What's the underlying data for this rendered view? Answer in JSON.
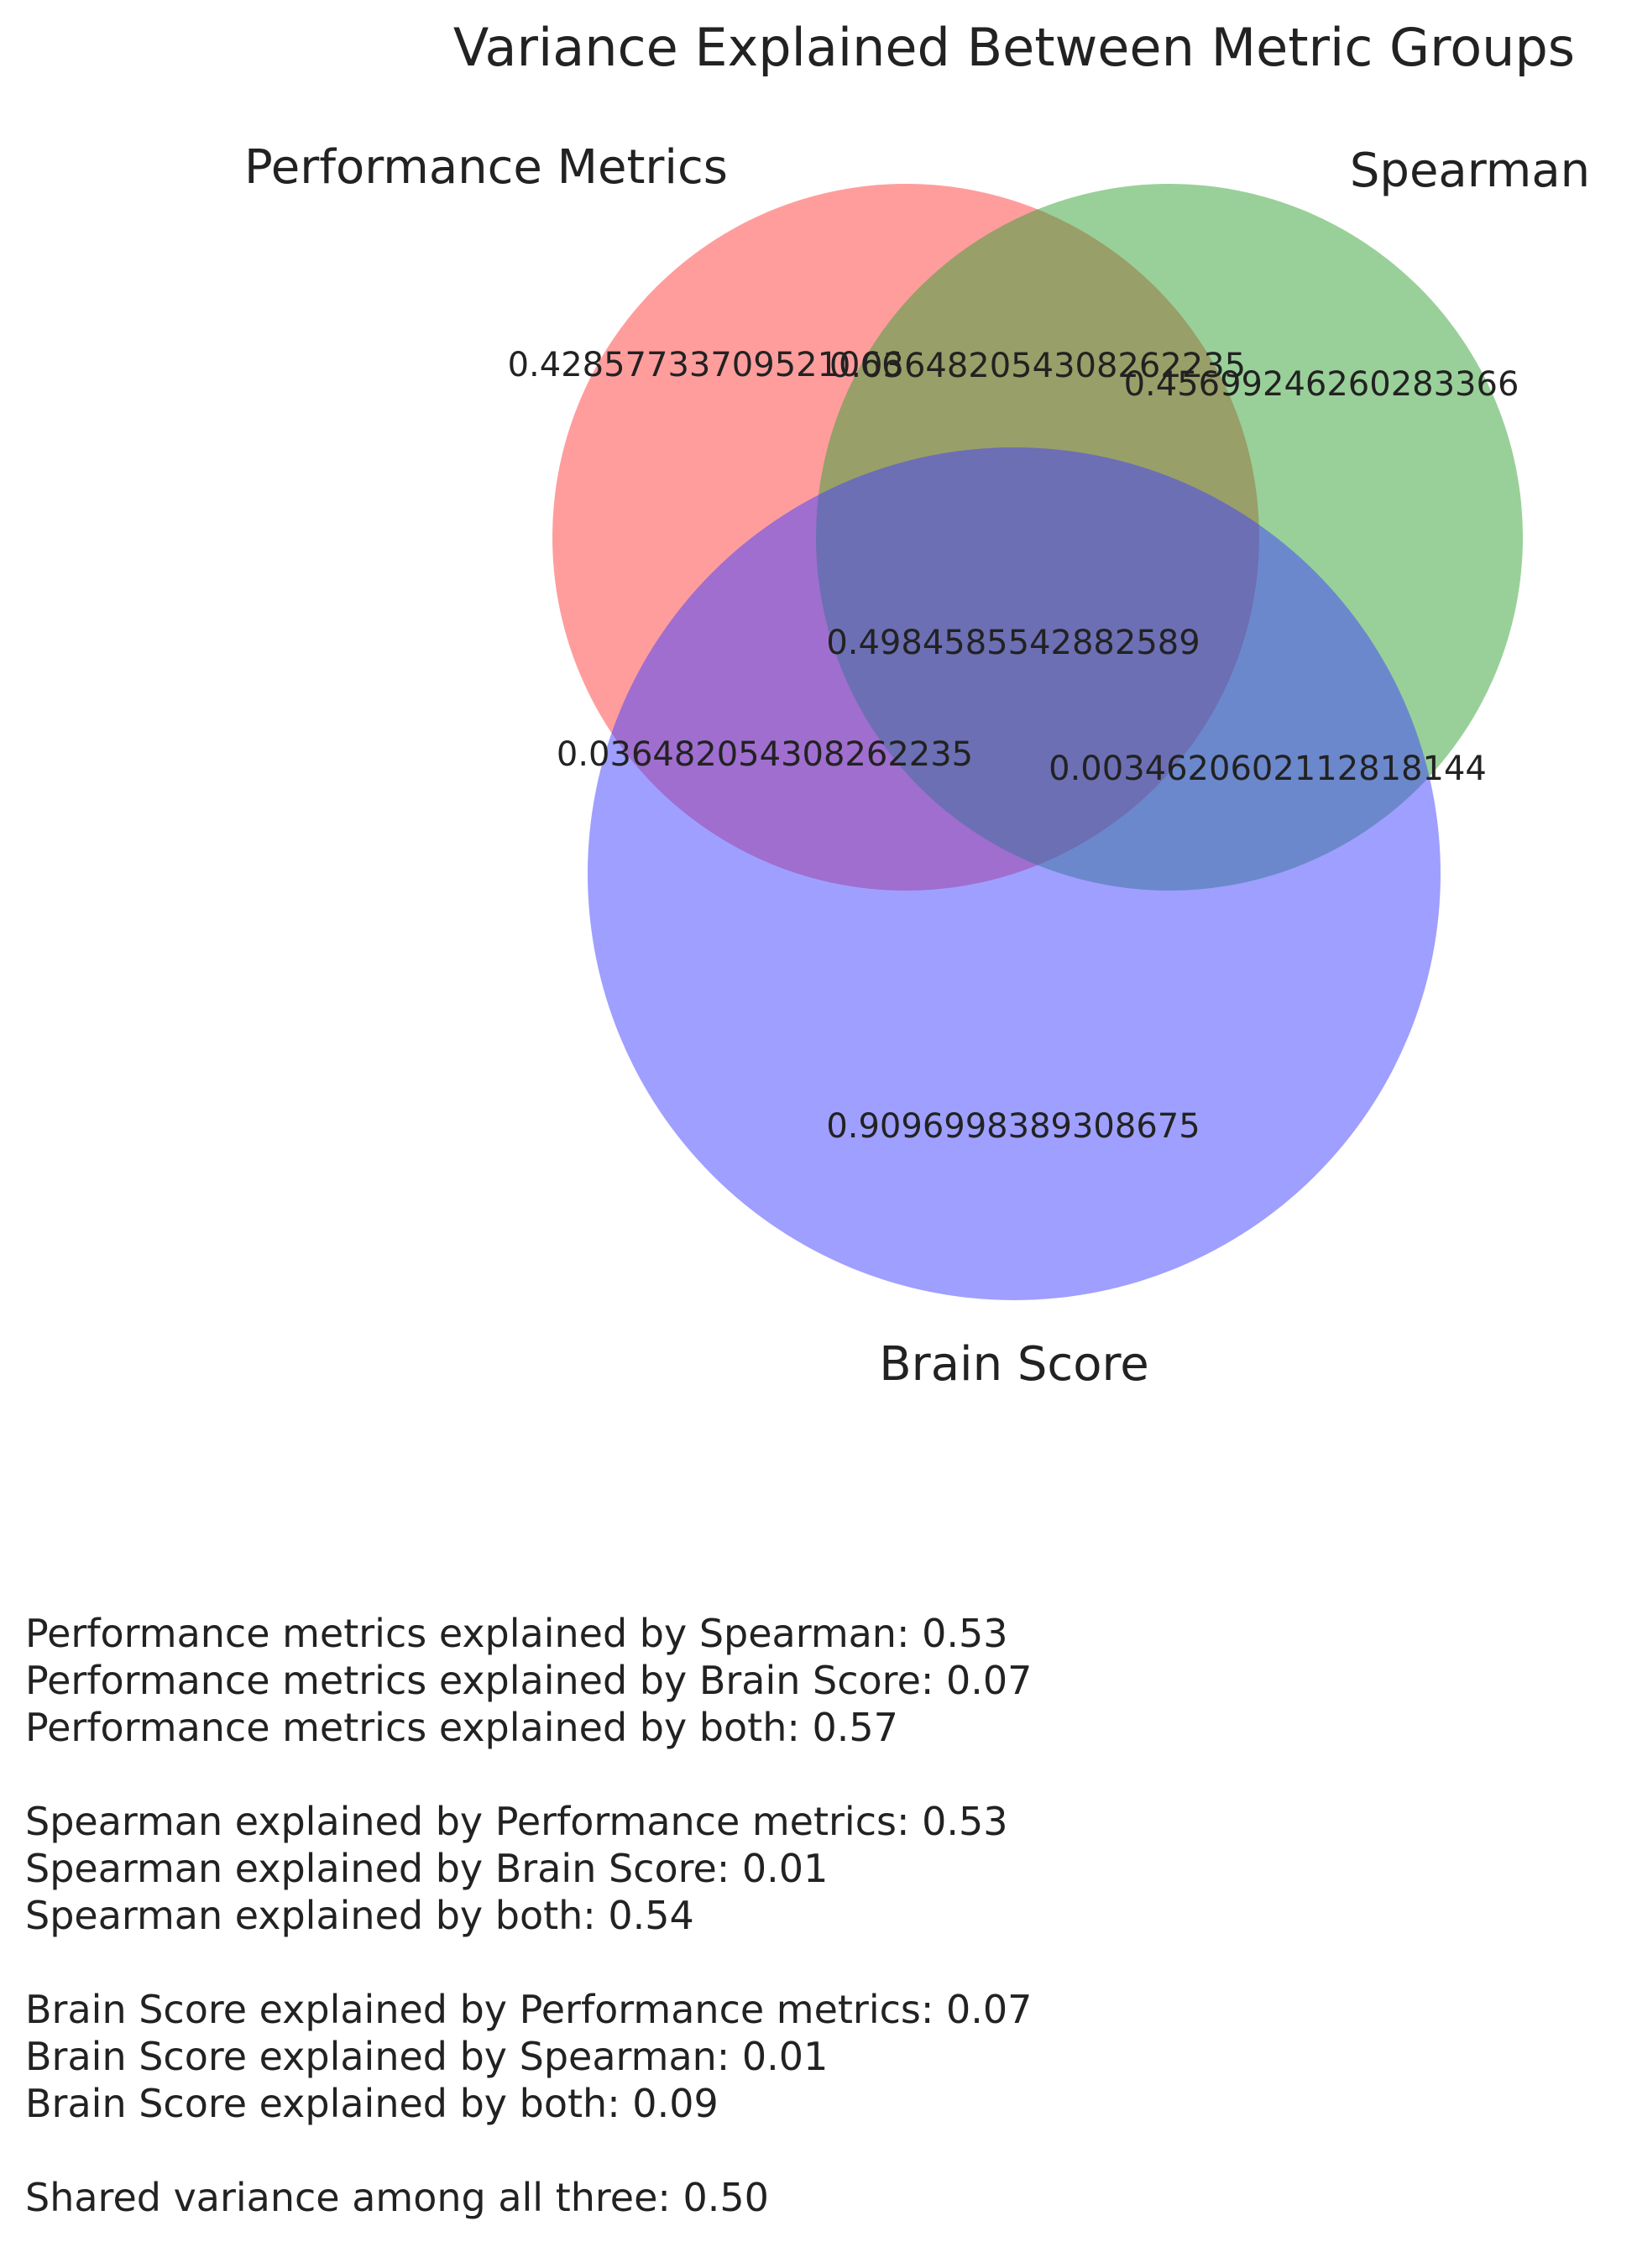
{
  "title": "Variance Explained Between Metric Groups",
  "sets": [
    {
      "name": "Performance Metrics",
      "color": "#ff4d4d"
    },
    {
      "name": "Spearman",
      "color": "#33a133"
    },
    {
      "name": "Brain Score",
      "color": "#4040ff"
    }
  ],
  "regions": {
    "performance_only": "0.42857733709521066",
    "spearman_only": "0.45699246260283366",
    "brain_only": "0.9096998389308675",
    "performance_spearman": "0.036482054308262235",
    "performance_brain": "0.036482054308262235",
    "spearman_brain": "0.0034620602112818144",
    "all_three": "0.4984585542882589"
  },
  "summary": [
    [
      "Performance metrics explained by Spearman: 0.53",
      "Performance metrics explained by Brain Score: 0.07",
      "Performance metrics explained by both: 0.57"
    ],
    [
      "Spearman explained by Performance metrics: 0.53",
      "Spearman explained by Brain Score: 0.01",
      "Spearman explained by both: 0.54"
    ],
    [
      "Brain Score explained by Performance metrics: 0.07",
      "Brain Score explained by Spearman: 0.01",
      "Brain Score explained by both: 0.09"
    ],
    [
      "Shared variance among all three: 0.50"
    ]
  ]
}
